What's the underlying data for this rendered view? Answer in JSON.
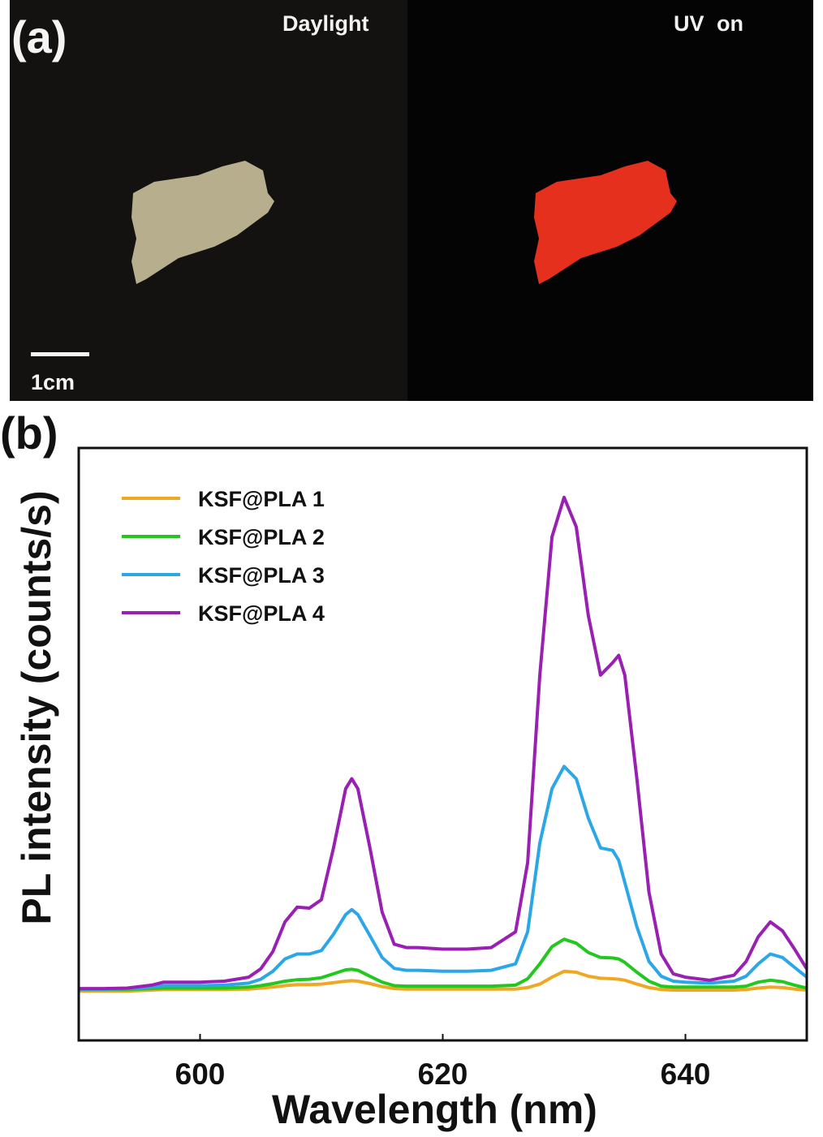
{
  "panel_a": {
    "tag": "(a)",
    "left_label": "Daylight",
    "right_label": "UV  on",
    "scale_label": "1cm",
    "colors": {
      "sample_daylight": "#b7ae8e",
      "sample_uv": "#e4301c"
    }
  },
  "panel_b": {
    "tag": "(b)"
  },
  "chart_data": {
    "type": "line",
    "xlabel": "Wavelength (nm)",
    "ylabel": "PL intensity (counts/s)",
    "xlim": [
      590,
      650
    ],
    "ylim": [
      -0.1,
      1.1
    ],
    "xticks": [
      600,
      620,
      640
    ],
    "y_tick_labels": false,
    "grid": false,
    "legend_position": "top-left",
    "x": [
      590,
      592,
      594,
      596,
      597,
      598,
      600,
      602,
      604,
      605,
      606,
      607,
      608,
      609,
      610,
      611,
      612,
      612.5,
      613,
      614,
      615,
      616,
      617,
      618,
      620,
      622,
      624,
      626,
      627,
      628,
      629,
      630,
      631,
      632,
      633,
      634,
      634.5,
      635,
      636,
      637,
      638,
      639,
      640,
      642,
      644,
      645,
      646,
      647,
      648,
      649,
      650
    ],
    "series": [
      {
        "name": "KSF@PLA 1",
        "color": "#f0a722",
        "values": [
          0.0,
          0.0,
          0.0,
          0.002,
          0.003,
          0.003,
          0.003,
          0.003,
          0.004,
          0.006,
          0.008,
          0.011,
          0.013,
          0.013,
          0.014,
          0.017,
          0.02,
          0.021,
          0.02,
          0.015,
          0.009,
          0.005,
          0.004,
          0.004,
          0.004,
          0.004,
          0.004,
          0.004,
          0.007,
          0.014,
          0.028,
          0.04,
          0.038,
          0.03,
          0.026,
          0.025,
          0.024,
          0.022,
          0.014,
          0.007,
          0.003,
          0.002,
          0.002,
          0.002,
          0.002,
          0.003,
          0.006,
          0.008,
          0.007,
          0.004,
          0.002
        ]
      },
      {
        "name": "KSF@PLA 2",
        "color": "#22c81e",
        "values": [
          0.003,
          0.003,
          0.003,
          0.005,
          0.006,
          0.006,
          0.006,
          0.006,
          0.008,
          0.011,
          0.015,
          0.02,
          0.023,
          0.024,
          0.027,
          0.035,
          0.043,
          0.044,
          0.042,
          0.03,
          0.018,
          0.011,
          0.01,
          0.01,
          0.01,
          0.01,
          0.01,
          0.012,
          0.025,
          0.055,
          0.09,
          0.105,
          0.097,
          0.078,
          0.068,
          0.067,
          0.065,
          0.058,
          0.038,
          0.02,
          0.01,
          0.008,
          0.008,
          0.008,
          0.008,
          0.01,
          0.018,
          0.022,
          0.019,
          0.012,
          0.006
        ]
      },
      {
        "name": "KSF@PLA 3",
        "color": "#2ba7e8",
        "values": [
          0.004,
          0.004,
          0.005,
          0.008,
          0.011,
          0.011,
          0.011,
          0.012,
          0.016,
          0.024,
          0.04,
          0.065,
          0.075,
          0.075,
          0.082,
          0.115,
          0.155,
          0.165,
          0.155,
          0.112,
          0.068,
          0.046,
          0.042,
          0.042,
          0.04,
          0.04,
          0.042,
          0.055,
          0.12,
          0.3,
          0.41,
          0.455,
          0.43,
          0.35,
          0.29,
          0.285,
          0.265,
          0.22,
          0.13,
          0.06,
          0.03,
          0.02,
          0.018,
          0.016,
          0.02,
          0.03,
          0.055,
          0.075,
          0.068,
          0.048,
          0.028
        ]
      },
      {
        "name": "KSF@PLA 4",
        "color": "#9a1fb3",
        "values": [
          0.005,
          0.005,
          0.006,
          0.012,
          0.018,
          0.018,
          0.018,
          0.02,
          0.028,
          0.045,
          0.08,
          0.14,
          0.17,
          0.168,
          0.185,
          0.29,
          0.41,
          0.43,
          0.41,
          0.29,
          0.16,
          0.095,
          0.088,
          0.088,
          0.085,
          0.085,
          0.088,
          0.12,
          0.26,
          0.64,
          0.92,
          1.0,
          0.94,
          0.76,
          0.64,
          0.665,
          0.68,
          0.64,
          0.43,
          0.2,
          0.075,
          0.035,
          0.028,
          0.022,
          0.032,
          0.06,
          0.11,
          0.14,
          0.122,
          0.085,
          0.045
        ]
      }
    ]
  }
}
